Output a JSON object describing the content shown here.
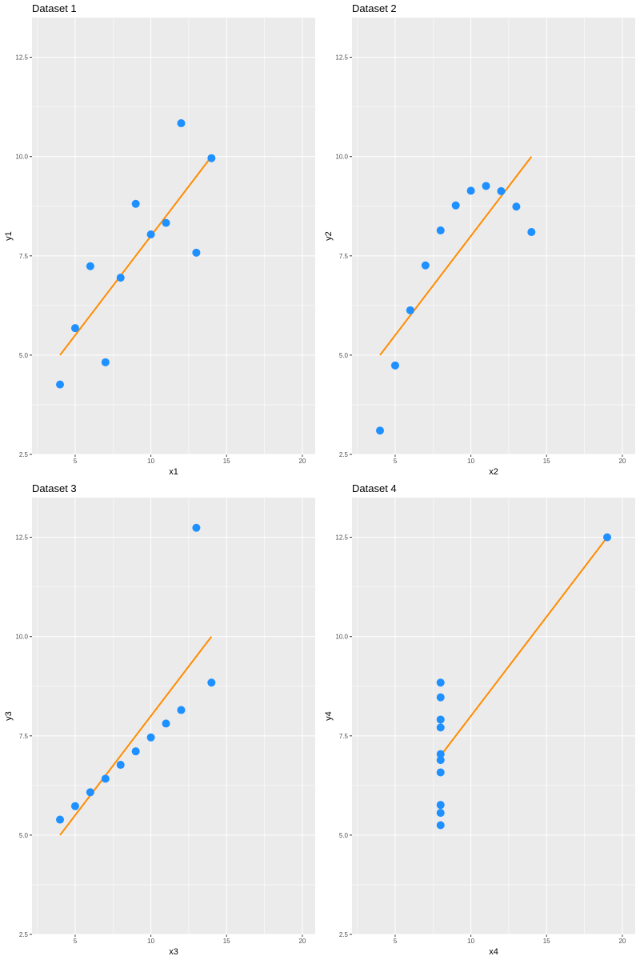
{
  "chart_data": [
    {
      "type": "scatter",
      "title": "Dataset 1",
      "xlabel": "x1",
      "ylabel": "y1",
      "x": [
        10,
        8,
        13,
        9,
        11,
        14,
        6,
        4,
        12,
        7,
        5
      ],
      "y": [
        8.04,
        6.95,
        7.58,
        8.81,
        8.33,
        9.96,
        7.24,
        4.26,
        10.84,
        4.82,
        5.68
      ],
      "fit": {
        "intercept": 3,
        "slope": 0.5,
        "x_range": [
          4,
          14
        ]
      }
    },
    {
      "type": "scatter",
      "title": "Dataset 2",
      "xlabel": "x2",
      "ylabel": "y2",
      "x": [
        10,
        8,
        13,
        9,
        11,
        14,
        6,
        4,
        12,
        7,
        5
      ],
      "y": [
        9.14,
        8.14,
        8.74,
        8.77,
        9.26,
        8.1,
        6.13,
        3.1,
        9.13,
        7.26,
        4.74
      ],
      "fit": {
        "intercept": 3,
        "slope": 0.5,
        "x_range": [
          4,
          14
        ]
      }
    },
    {
      "type": "scatter",
      "title": "Dataset 3",
      "xlabel": "x3",
      "ylabel": "y3",
      "x": [
        10,
        8,
        13,
        9,
        11,
        14,
        6,
        4,
        12,
        7,
        5
      ],
      "y": [
        7.46,
        6.77,
        12.74,
        7.11,
        7.81,
        8.84,
        6.08,
        5.39,
        8.15,
        6.42,
        5.73
      ],
      "fit": {
        "intercept": 3,
        "slope": 0.5,
        "x_range": [
          4,
          14
        ]
      }
    },
    {
      "type": "scatter",
      "title": "Dataset 4",
      "xlabel": "x4",
      "ylabel": "y4",
      "x": [
        8,
        8,
        8,
        8,
        8,
        8,
        8,
        19,
        8,
        8,
        8
      ],
      "y": [
        6.58,
        5.76,
        7.71,
        8.84,
        8.47,
        7.04,
        5.25,
        12.5,
        5.56,
        7.91,
        6.89
      ],
      "fit": {
        "intercept": 3,
        "slope": 0.5,
        "x_range": [
          8,
          19
        ]
      }
    }
  ],
  "axes": {
    "xlim": [
      2.15,
      20.85
    ],
    "ylim": [
      2.5,
      13.5
    ],
    "xticks": [
      5,
      10,
      15,
      20
    ],
    "xtick_labels": [
      "5",
      "10",
      "15",
      "20"
    ],
    "yticks": [
      2.5,
      5,
      7.5,
      10,
      12.5
    ],
    "ytick_labels": [
      "2.5",
      "5.0",
      "7.5",
      "10.0",
      "12.5"
    ],
    "grid": true
  },
  "colors": {
    "point": "#1e90ff",
    "line": "#ff8c00",
    "panel": "#ebebeb",
    "grid": "#ffffff"
  }
}
